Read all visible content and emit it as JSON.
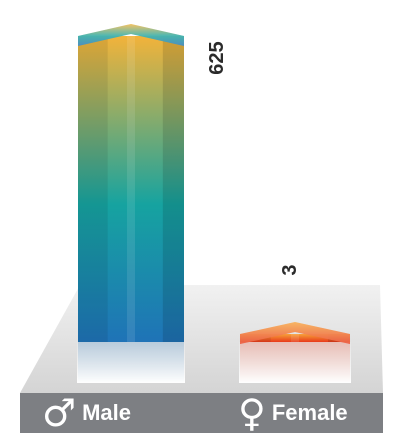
{
  "chart_data": {
    "type": "bar",
    "categories": [
      "Male",
      "Female"
    ],
    "values": [
      625,
      3
    ],
    "value_labels": [
      "625",
      "3"
    ],
    "category_symbols": [
      "♂",
      "♀"
    ],
    "colors": {
      "male_top": "#f2b33a",
      "male_mid": "#16a3a0",
      "male_bottom": "#1f73b7",
      "female_top": "#f7a23a",
      "female_bottom": "#e83a1a",
      "floor": "#e3e3e3",
      "category_bar": "#7d7f83"
    },
    "grid": false,
    "legend": "none"
  }
}
